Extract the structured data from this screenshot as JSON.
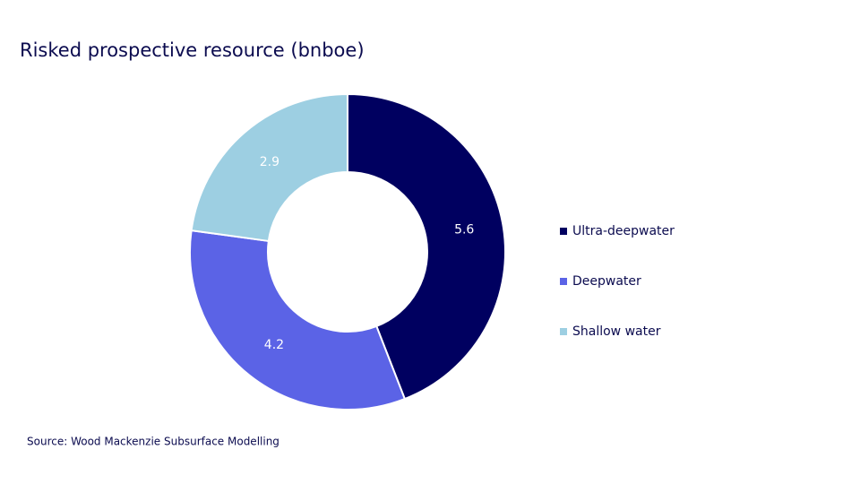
{
  "chart_data": {
    "type": "donut",
    "title": "Risked prospective resource (bnboe)",
    "categories": [
      "Ultra-deepwater",
      "Deepwater",
      "Shallow water"
    ],
    "values": [
      5.6,
      4.2,
      2.9
    ],
    "colors": [
      "#000060",
      "#5b63e6",
      "#9dcfe2"
    ],
    "legend": "right",
    "source": "Source: Wood Mackenzie Subsurface Modelling"
  }
}
